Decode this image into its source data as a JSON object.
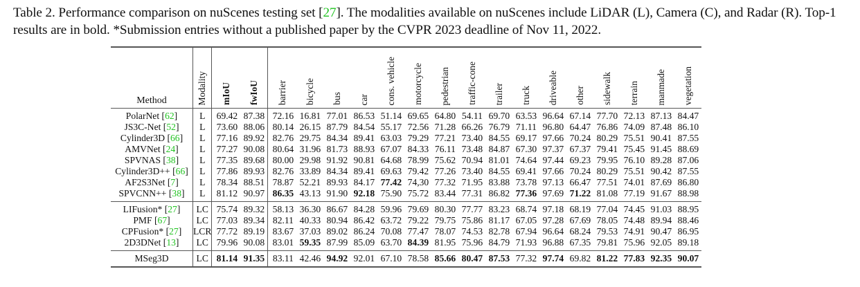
{
  "caption": {
    "prefix": "Table 2.  Performance comparison on nuScenes testing set [",
    "cite": "27",
    "suffix": "].  The modalities available on nuScenes include LiDAR (L), Camera (C), and Radar (R). Top-1 results are in bold. *Submission entries without a published paper by the CVPR 2023 deadline of Nov 11, 2022."
  },
  "table": {
    "headers": {
      "method": "Method",
      "modality": "Modality",
      "metrics": [
        "mIoU",
        "fwIoU"
      ],
      "classes": [
        "barrier",
        "bicycle",
        "bus",
        "car",
        "cons. vehicle",
        "motorcycle",
        "pedestrian",
        "traffic-cone",
        "trailer",
        "truck",
        "driveable",
        "other",
        "sidewalk",
        "terrain",
        "manmade",
        "vegetation"
      ]
    },
    "groups": [
      {
        "rows": [
          {
            "name": "PolarNet",
            "ref": "62",
            "modality": "L",
            "miou": "69.42",
            "fwiou": "87.38",
            "vals": [
              "72.16",
              "16.81",
              "77.01",
              "86.53",
              "51.14",
              "69.65",
              "64.80",
              "54.11",
              "69.70",
              "63.53",
              "96.64",
              "67.14",
              "77.70",
              "72.13",
              "87.13",
              "84.47"
            ],
            "bold": []
          },
          {
            "name": "JS3C-Net",
            "ref": "52",
            "modality": "L",
            "miou": "73.60",
            "fwiou": "88.06",
            "vals": [
              "80.14",
              "26.15",
              "87.79",
              "84.54",
              "55.17",
              "72.56",
              "71.28",
              "66.26",
              "76.79",
              "71.11",
              "96.80",
              "64.47",
              "76.86",
              "74.09",
              "87.48",
              "86.10"
            ],
            "bold": []
          },
          {
            "name": "Cylinder3D",
            "ref": "66",
            "modality": "L",
            "miou": "77.16",
            "fwiou": "89.92",
            "vals": [
              "82.76",
              "29.75",
              "84.34",
              "89.41",
              "63.03",
              "79.29",
              "77.21",
              "73.40",
              "84.55",
              "69.17",
              "97.66",
              "70.24",
              "80.29",
              "75.51",
              "90.41",
              "87.55"
            ],
            "bold": []
          },
          {
            "name": "AMVNet",
            "ref": "24",
            "modality": "L",
            "miou": "77.27",
            "fwiou": "90.08",
            "vals": [
              "80.64",
              "31.96",
              "81.73",
              "88.93",
              "67.07",
              "84.33",
              "76.11",
              "73.48",
              "84.87",
              "67.30",
              "97.37",
              "67.37",
              "79.41",
              "75.45",
              "91.45",
              "88.69"
            ],
            "bold": []
          },
          {
            "name": "SPVNAS",
            "ref": "38",
            "modality": "L",
            "miou": "77.35",
            "fwiou": "89.68",
            "vals": [
              "80.00",
              "29.98",
              "91.92",
              "90.81",
              "64.68",
              "78.99",
              "75.62",
              "70.94",
              "81.01",
              "74.64",
              "97.44",
              "69.23",
              "79.95",
              "76.10",
              "89.28",
              "87.06"
            ],
            "bold": []
          },
          {
            "name": "Cylinder3D++",
            "ref": "66",
            "modality": "L",
            "miou": "77.86",
            "fwiou": "89.93",
            "vals": [
              "82.76",
              "33.89",
              "84.34",
              "89.41",
              "69.63",
              "79.42",
              "77.26",
              "73.40",
              "84.55",
              "69.41",
              "97.66",
              "70.24",
              "80.29",
              "75.51",
              "90.42",
              "87.55"
            ],
            "bold": []
          },
          {
            "name": "AF2S3Net",
            "ref": "7",
            "modality": "L",
            "miou": "78.34",
            "fwiou": "88.51",
            "vals": [
              "78.87",
              "52.21",
              "89.93",
              "84.17",
              "77.42",
              "74,30",
              "77.32",
              "71.95",
              "83.88",
              "73.78",
              "97.13",
              "66.47",
              "77.51",
              "74.01",
              "87.69",
              "86.80"
            ],
            "bold": [
              4
            ]
          },
          {
            "name": "SPVCNN++",
            "ref": "38",
            "modality": "L",
            "miou": "81.12",
            "fwiou": "90.97",
            "vals": [
              "86.35",
              "43.13",
              "91.90",
              "92.18",
              "75.90",
              "75.72",
              "83.44",
              "77.31",
              "86.82",
              "77.36",
              "97.69",
              "71.22",
              "81.08",
              "77.19",
              "91.67",
              "88.98"
            ],
            "bold": [
              0,
              3,
              9,
              11
            ]
          }
        ]
      },
      {
        "rows": [
          {
            "name": "LIFusion*",
            "ref": "27",
            "modality": "LC",
            "miou": "75.74",
            "fwiou": "89.32",
            "vals": [
              "58.13",
              "36.30",
              "86.67",
              "84.28",
              "59.96",
              "79.69",
              "80.30",
              "77.77",
              "83.23",
              "68.74",
              "97.18",
              "68.19",
              "77.04",
              "74.45",
              "91.03",
              "88.95"
            ],
            "bold": []
          },
          {
            "name": "PMF",
            "ref": "67",
            "modality": "LC",
            "miou": "77.03",
            "fwiou": "89.34",
            "vals": [
              "82.11",
              "40.33",
              "80.94",
              "86.42",
              "63.72",
              "79.22",
              "79.75",
              "75.86",
              "81.17",
              "67.05",
              "97.28",
              "67.69",
              "78.05",
              "74.48",
              "89.94",
              "88.46"
            ],
            "bold": []
          },
          {
            "name": "CPFusion*",
            "ref": "27",
            "modality": "LCR",
            "miou": "77.72",
            "fwiou": "89.19",
            "vals": [
              "83.67",
              "37.03",
              "89.02",
              "86.24",
              "70.08",
              "77.47",
              "78.07",
              "74.53",
              "82.78",
              "67.94",
              "96.64",
              "68.24",
              "79.53",
              "74.91",
              "90.47",
              "86.95"
            ],
            "bold": []
          },
          {
            "name": "2D3DNet",
            "ref": "13",
            "modality": "LC",
            "miou": "79.96",
            "fwiou": "90.08",
            "vals": [
              "83.01",
              "59.35",
              "87.99",
              "85.09",
              "63.70",
              "84.39",
              "81.95",
              "75.96",
              "84.79",
              "71.93",
              "96.88",
              "67.35",
              "79.81",
              "75.96",
              "92.05",
              "89.18"
            ],
            "bold": [
              1,
              5
            ]
          }
        ]
      },
      {
        "rows": [
          {
            "name": "MSeg3D",
            "ref": "",
            "modality": "LC",
            "miou": "81.14",
            "fwiou": "91.35",
            "metric_bold": true,
            "vals": [
              "83.11",
              "42.46",
              "94.92",
              "92.01",
              "67.10",
              "78.58",
              "85.66",
              "80.47",
              "87.53",
              "77.32",
              "97.74",
              "69.82",
              "81.22",
              "77.83",
              "92.35",
              "90.07"
            ],
            "bold": [
              2,
              6,
              7,
              8,
              10,
              12,
              13,
              14,
              15
            ]
          }
        ]
      }
    ]
  }
}
